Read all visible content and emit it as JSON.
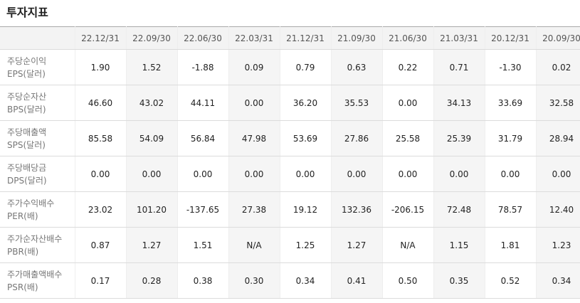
{
  "header": {
    "title": "투자지표"
  },
  "table": {
    "columns": [
      "22.12/31",
      "22.09/30",
      "22.06/30",
      "22.03/31",
      "21.12/31",
      "21.09/30",
      "21.06/30",
      "21.03/31",
      "20.12/31",
      "20.09/30"
    ],
    "rows": [
      {
        "label": [
          "주당순이익",
          "EPS(달러)"
        ],
        "cells": [
          "1.90",
          "1.52",
          "-1.88",
          "0.09",
          "0.79",
          "0.63",
          "0.22",
          "0.71",
          "-1.30",
          "0.02"
        ]
      },
      {
        "label": [
          "주당순자산",
          "BPS(달러)"
        ],
        "cells": [
          "46.60",
          "43.02",
          "44.11",
          "0.00",
          "36.20",
          "35.53",
          "0.00",
          "34.13",
          "33.69",
          "32.58"
        ]
      },
      {
        "label": [
          "주당매출액",
          "SPS(달러)"
        ],
        "cells": [
          "85.58",
          "54.09",
          "56.84",
          "47.98",
          "53.69",
          "27.86",
          "25.58",
          "25.39",
          "31.79",
          "28.94"
        ]
      },
      {
        "label": [
          "주당배당금",
          "DPS(달러)"
        ],
        "cells": [
          "0.00",
          "0.00",
          "0.00",
          "0.00",
          "0.00",
          "0.00",
          "0.00",
          "0.00",
          "0.00",
          "0.00"
        ]
      },
      {
        "label": [
          "주가수익배수",
          "PER(배)"
        ],
        "cells": [
          "23.02",
          "101.20",
          "-137.65",
          "27.38",
          "19.12",
          "132.36",
          "-206.15",
          "72.48",
          "78.57",
          "12.40"
        ]
      },
      {
        "label": [
          "주가순자산배수",
          "PBR(배)"
        ],
        "cells": [
          "0.87",
          "1.27",
          "1.51",
          "N/A",
          "1.25",
          "1.27",
          "N/A",
          "1.15",
          "1.81",
          "1.23"
        ]
      },
      {
        "label": [
          "주가매출액배수",
          "PSR(배)"
        ],
        "cells": [
          "0.17",
          "0.28",
          "0.38",
          "0.30",
          "0.34",
          "0.41",
          "0.50",
          "0.35",
          "0.52",
          "0.34"
        ]
      }
    ]
  }
}
